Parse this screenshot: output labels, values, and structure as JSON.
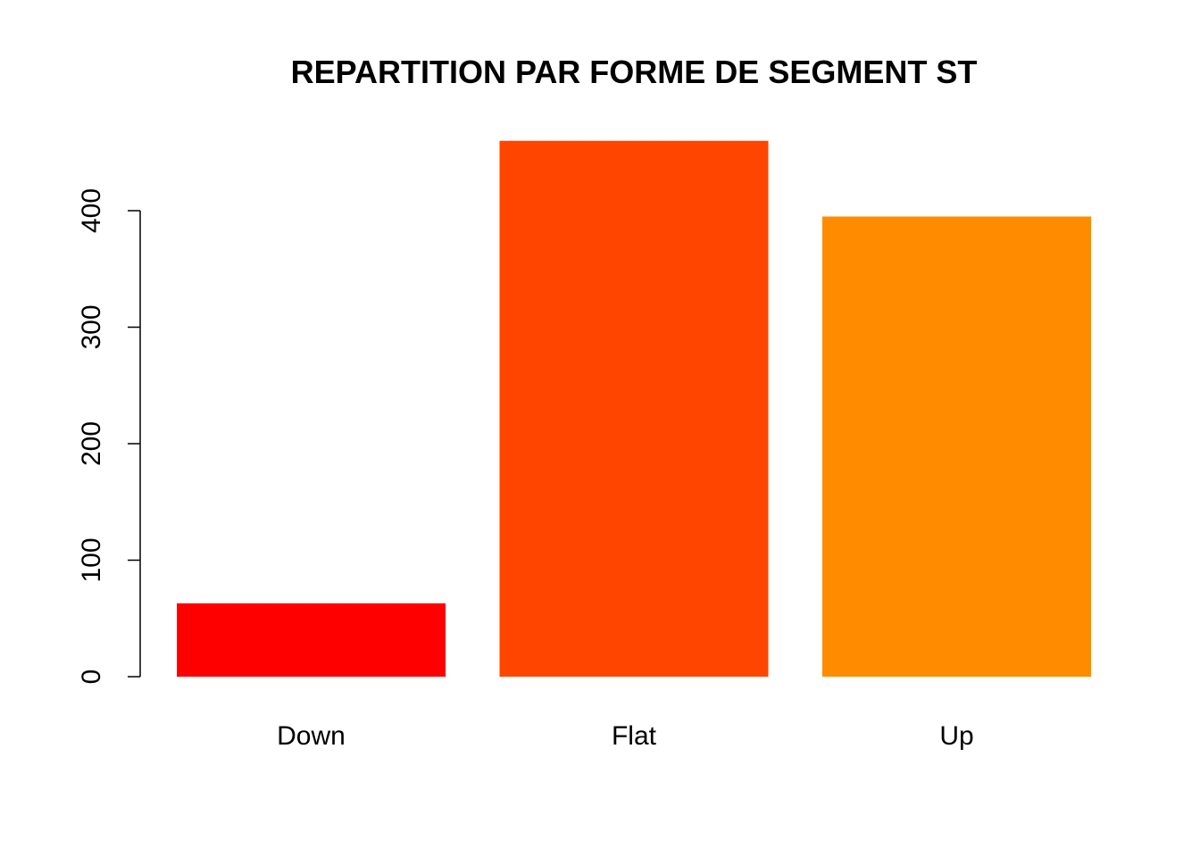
{
  "chart_data": {
    "type": "bar",
    "title": "REPARTITION PAR FORME DE SEGMENT ST",
    "categories": [
      "Down",
      "Flat",
      "Up"
    ],
    "values": [
      63,
      460,
      395
    ],
    "colors": [
      "#FF0000",
      "#FF4500",
      "#FF8C00"
    ],
    "ylim": [
      0,
      460
    ],
    "yticks": [
      0,
      100,
      200,
      300,
      400
    ],
    "ytick_labels": [
      "0",
      "100",
      "200",
      "300",
      "400"
    ],
    "xlabel": "",
    "ylabel": "",
    "grid": false,
    "legend": "none"
  }
}
